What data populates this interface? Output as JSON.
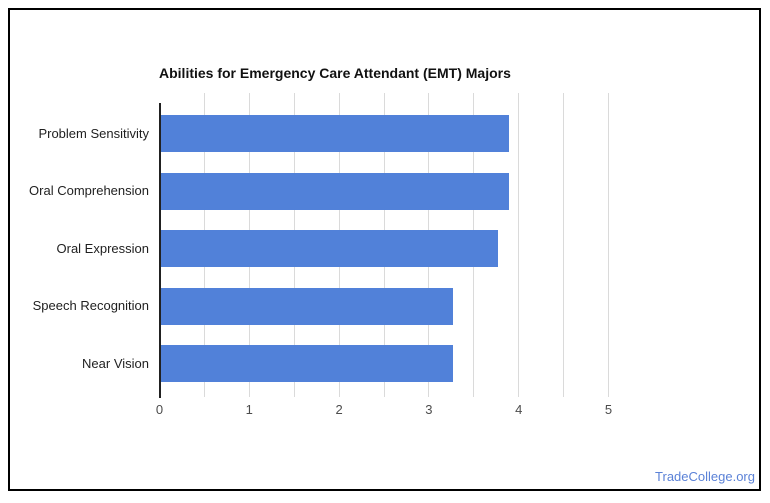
{
  "chart_data": {
    "type": "bar",
    "orientation": "horizontal",
    "title": "Abilities for Emergency Care Attendant (EMT) Majors",
    "categories": [
      "Problem Sensitivity",
      "Oral Comprehension",
      "Oral Expression",
      "Speech Recognition",
      "Near Vision"
    ],
    "values": [
      3.88,
      3.88,
      3.75,
      3.25,
      3.25
    ],
    "xlabel": "",
    "ylabel": "",
    "xlim": [
      0,
      5
    ],
    "x_ticks": [
      0,
      1,
      2,
      3,
      4,
      5
    ],
    "gridline_step": 0.5,
    "grid": "on",
    "legend": "none",
    "bar_color": "#5181d9",
    "gridline_color": "#dadada",
    "axis_line_color": "#212121",
    "title_color": "#111111",
    "category_label_color": "#1f1f1f",
    "tick_label_color": "#4c4c4c"
  },
  "watermark": {
    "label": "TradeCollege.org",
    "color": "#5b82d7"
  },
  "frame": {
    "border_color": "#000000"
  }
}
